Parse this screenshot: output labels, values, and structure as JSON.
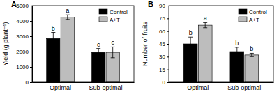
{
  "chart_data": [
    {
      "type": "bar",
      "title": "A",
      "ylabel": "Yield (g plant⁻¹)",
      "categories": [
        "Optimal",
        "Sub-optimal"
      ],
      "ylim": [
        0,
        5000
      ],
      "yticks": [
        0,
        1000,
        2000,
        3000,
        4000,
        5000
      ],
      "legend": "upper right",
      "series": [
        {
          "name": "Control",
          "color": "#000000",
          "values": [
            2850,
            1950
          ],
          "errors": [
            400,
            250
          ],
          "annotations": [
            "b",
            "c"
          ]
        },
        {
          "name": "A+T",
          "color": "#bdbdbd",
          "values": [
            4250,
            1950
          ],
          "errors": [
            150,
            350
          ],
          "annotations": [
            "a",
            "c"
          ]
        }
      ]
    },
    {
      "type": "bar",
      "title": "B",
      "ylabel": "Number of fruits",
      "categories": [
        "Optimal",
        "Sub-optimal"
      ],
      "ylim": [
        0,
        90
      ],
      "yticks": [
        0,
        15,
        30,
        45,
        60,
        75,
        90
      ],
      "legend": "upper right",
      "series": [
        {
          "name": "Control",
          "color": "#000000",
          "values": [
            45,
            36
          ],
          "errors": [
            8,
            5
          ],
          "annotations": [
            "b",
            "b"
          ]
        },
        {
          "name": "A+T",
          "color": "#bdbdbd",
          "values": [
            67,
            32
          ],
          "errors": [
            3,
            2
          ],
          "annotations": [
            "a",
            "b"
          ]
        }
      ]
    }
  ]
}
